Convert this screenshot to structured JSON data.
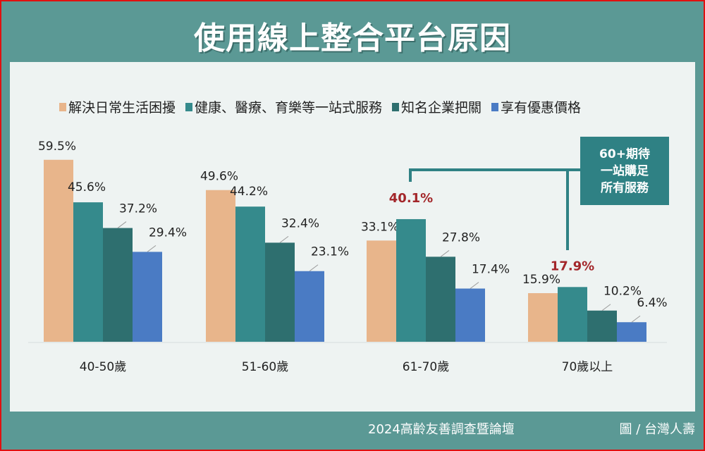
{
  "title": "使用線上整合平台原因",
  "footer": {
    "source": "2024高齡友善調查暨論壇",
    "credit": "圖 / 台灣人壽"
  },
  "annotation": [
    "60+期待",
    "一站購足",
    "所有服務"
  ],
  "chart_data": {
    "type": "bar",
    "title": "使用線上整合平台原因",
    "categories": [
      "40-50歲",
      "51-60歲",
      "61-70歲",
      "70歲以上"
    ],
    "series": [
      {
        "name": "解決日常生活困擾",
        "color": "#e8b58b",
        "values": [
          59.5,
          49.6,
          33.1,
          15.9
        ]
      },
      {
        "name": "健康、醫療、育樂等一站式服務",
        "color": "#358a8c",
        "values": [
          45.6,
          44.2,
          40.1,
          17.9
        ]
      },
      {
        "name": "知名企業把關",
        "color": "#2e6f6f",
        "values": [
          37.2,
          32.4,
          27.8,
          10.2
        ]
      },
      {
        "name": "享有優惠價格",
        "color": "#4a7bc4",
        "values": [
          29.4,
          23.1,
          17.4,
          6.4
        ]
      }
    ],
    "highlighted": [
      {
        "category": "61-70歲",
        "series": "健康、醫療、育樂等一站式服務"
      },
      {
        "category": "70歲以上",
        "series": "健康、醫療、育樂等一站式服務"
      }
    ],
    "highlight_color": "#a3262a",
    "unit": "%",
    "legend": "top",
    "grid": false,
    "ylim": [
      0,
      65
    ]
  }
}
